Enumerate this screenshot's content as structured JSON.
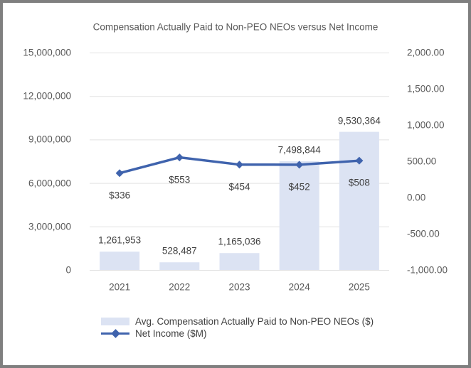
{
  "chart_data": {
    "type": "combo-bar-line",
    "title": "Compensation Actually Paid to Non-PEO NEOs versus Net Income",
    "categories": [
      "2021",
      "2022",
      "2023",
      "2024",
      "2025"
    ],
    "series": [
      {
        "name": "Avg. Compensation Actually Paid to Non-PEO NEOs ($)",
        "type": "bar",
        "axis": "left",
        "values": [
          1261953,
          528487,
          1165036,
          7498844,
          9530364
        ],
        "labels": [
          "1,261,953",
          "528,487",
          "1,165,036",
          "7,498,844",
          "9,530,364"
        ],
        "color": "#dce3f3"
      },
      {
        "name": "Net Income ($M)",
        "type": "line",
        "axis": "right",
        "values": [
          336,
          553,
          454,
          452,
          508
        ],
        "labels": [
          "$336",
          "$553",
          "$454",
          "$452",
          "$508"
        ],
        "color": "#3f63ad"
      }
    ],
    "left_axis": {
      "min": 0,
      "max": 15000000,
      "step": 3000000,
      "ticks_top_to_bottom": [
        "15,000,000",
        "12,000,000",
        "9,000,000",
        "6,000,000",
        "3,000,000",
        "0"
      ]
    },
    "right_axis": {
      "min": -1000,
      "max": 2000,
      "step": 500,
      "ticks_top_to_bottom": [
        "2,000.00",
        "1,500.00",
        "1,000.00",
        "500.00",
        "0.00",
        "-500.00",
        "-1,000.00"
      ]
    },
    "grid": "horizontal",
    "legend_position": "bottom",
    "colors": {
      "gridline": "#e2e2e2",
      "axis_text": "#595959",
      "data_label_text": "#404040",
      "background": "#ffffff",
      "frame_border": "#7f7f7f"
    }
  }
}
